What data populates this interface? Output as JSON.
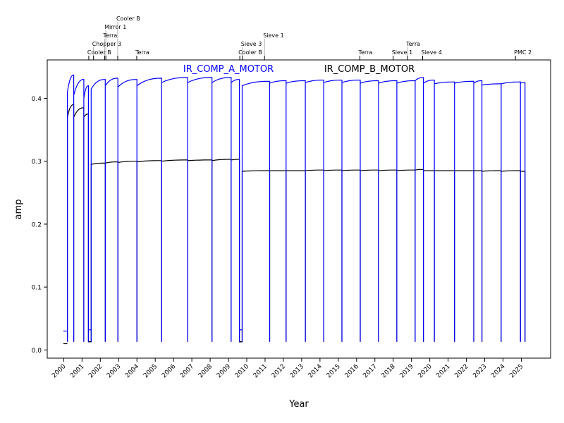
{
  "chart_data": {
    "type": "line",
    "title": "",
    "xlabel": "Year",
    "ylabel": "amp",
    "xlim": [
      1999.1,
      2026.6
    ],
    "ylim": [
      -0.013,
      0.461
    ],
    "x_ticks": [
      2000,
      2001,
      2002,
      2003,
      2004,
      2005,
      2006,
      2007,
      2008,
      2009,
      2010,
      2011,
      2012,
      2013,
      2014,
      2015,
      2016,
      2017,
      2018,
      2019,
      2020,
      2021,
      2022,
      2023,
      2024,
      2025
    ],
    "y_ticks": [
      0.0,
      0.1,
      0.2,
      0.3,
      0.4
    ],
    "y_tick_labels": [
      "0.0",
      "0.1",
      "0.2",
      "0.3",
      "0.4"
    ],
    "grid": false,
    "series": [
      {
        "name": "IR_COMP_A_MOTOR",
        "color": "#0000ff"
      },
      {
        "name": "IR_COMP_B_MOTOR",
        "color": "#000000"
      }
    ],
    "baseline": 0.013,
    "segments_note": "each: [start_year, end_year, A_start, A_end, B_start, B_end]",
    "segments": [
      [
        2000.2,
        2000.55,
        0.41,
        0.437,
        0.37,
        0.39
      ],
      [
        2000.55,
        2001.1,
        0.405,
        0.43,
        0.37,
        0.385
      ],
      [
        2001.1,
        2001.35,
        0.4,
        0.42,
        0.37,
        0.375
      ],
      [
        2001.5,
        2002.27,
        0.415,
        0.43,
        0.295,
        0.297
      ],
      [
        2002.27,
        2002.96,
        0.42,
        0.432,
        0.297,
        0.299
      ],
      [
        2002.96,
        2004.0,
        0.418,
        0.43,
        0.298,
        0.3
      ],
      [
        2004.0,
        2005.35,
        0.42,
        0.432,
        0.299,
        0.301
      ],
      [
        2005.35,
        2006.77,
        0.425,
        0.433,
        0.3,
        0.302
      ],
      [
        2006.77,
        2008.1,
        0.425,
        0.433,
        0.301,
        0.302
      ],
      [
        2008.1,
        2009.15,
        0.425,
        0.433,
        0.301,
        0.303
      ],
      [
        2009.15,
        2009.6,
        0.425,
        0.43,
        0.302,
        0.303
      ],
      [
        2009.75,
        2011.25,
        0.42,
        0.427,
        0.284,
        0.285
      ],
      [
        2011.25,
        2012.15,
        0.424,
        0.428,
        0.285,
        0.285
      ],
      [
        2012.15,
        2013.2,
        0.424,
        0.428,
        0.285,
        0.285
      ],
      [
        2013.2,
        2014.2,
        0.425,
        0.429,
        0.285,
        0.286
      ],
      [
        2014.2,
        2015.2,
        0.425,
        0.429,
        0.285,
        0.286
      ],
      [
        2015.2,
        2016.2,
        0.425,
        0.429,
        0.285,
        0.286
      ],
      [
        2016.2,
        2017.2,
        0.424,
        0.428,
        0.285,
        0.286
      ],
      [
        2017.2,
        2018.2,
        0.424,
        0.428,
        0.285,
        0.286
      ],
      [
        2018.2,
        2019.2,
        0.424,
        0.428,
        0.285,
        0.286
      ],
      [
        2019.2,
        2019.65,
        0.428,
        0.433,
        0.286,
        0.287
      ],
      [
        2019.65,
        2020.25,
        0.424,
        0.429,
        0.285,
        0.285
      ],
      [
        2020.25,
        2021.35,
        0.423,
        0.426,
        0.285,
        0.285
      ],
      [
        2021.35,
        2022.4,
        0.424,
        0.427,
        0.285,
        0.285
      ],
      [
        2022.4,
        2022.85,
        0.424,
        0.428,
        0.285,
        0.285
      ],
      [
        2022.85,
        2023.9,
        0.421,
        0.423,
        0.284,
        0.285
      ],
      [
        2023.9,
        2024.95,
        0.423,
        0.426,
        0.284,
        0.285
      ],
      [
        2024.95,
        2025.2,
        0.424,
        0.425,
        0.284,
        0.284
      ]
    ],
    "low_segments": [
      {
        "series": 0,
        "points": [
          [
            1999.98,
            0.03
          ],
          [
            2000.2,
            0.03
          ]
        ]
      },
      {
        "series": 1,
        "points": [
          [
            1999.98,
            0.01
          ],
          [
            2000.2,
            0.01
          ]
        ]
      },
      {
        "series": 0,
        "points": [
          [
            2001.35,
            0.032
          ],
          [
            2001.5,
            0.032
          ]
        ]
      },
      {
        "series": 1,
        "points": [
          [
            2001.35,
            0.013
          ],
          [
            2001.5,
            0.013
          ]
        ]
      },
      {
        "series": 0,
        "points": [
          [
            2009.6,
            0.032
          ],
          [
            2009.75,
            0.032
          ]
        ]
      },
      {
        "series": 1,
        "points": [
          [
            2009.6,
            0.013
          ],
          [
            2009.75,
            0.013
          ]
        ]
      }
    ],
    "annotations": [
      {
        "year": 2001.37,
        "label": "Cooler B"
      },
      {
        "year": 2001.63,
        "label": "Chopper 3"
      },
      {
        "year": 2002.24,
        "label": "Terra"
      },
      {
        "year": 2002.3,
        "label": "Mirror 1"
      },
      {
        "year": 2002.95,
        "label": "Cooler B"
      },
      {
        "year": 2003.99,
        "label": "Terra"
      },
      {
        "year": 2009.62,
        "label": "Cooler B"
      },
      {
        "year": 2009.76,
        "label": "Sieve 3"
      },
      {
        "year": 2010.97,
        "label": "Sieve 1"
      },
      {
        "year": 2016.18,
        "label": "Terra"
      },
      {
        "year": 2018.0,
        "label": "Sieve 1"
      },
      {
        "year": 2018.79,
        "label": "Terra"
      },
      {
        "year": 2019.61,
        "label": "Sieve 4"
      },
      {
        "year": 2024.68,
        "label": "PMC 2"
      }
    ]
  }
}
